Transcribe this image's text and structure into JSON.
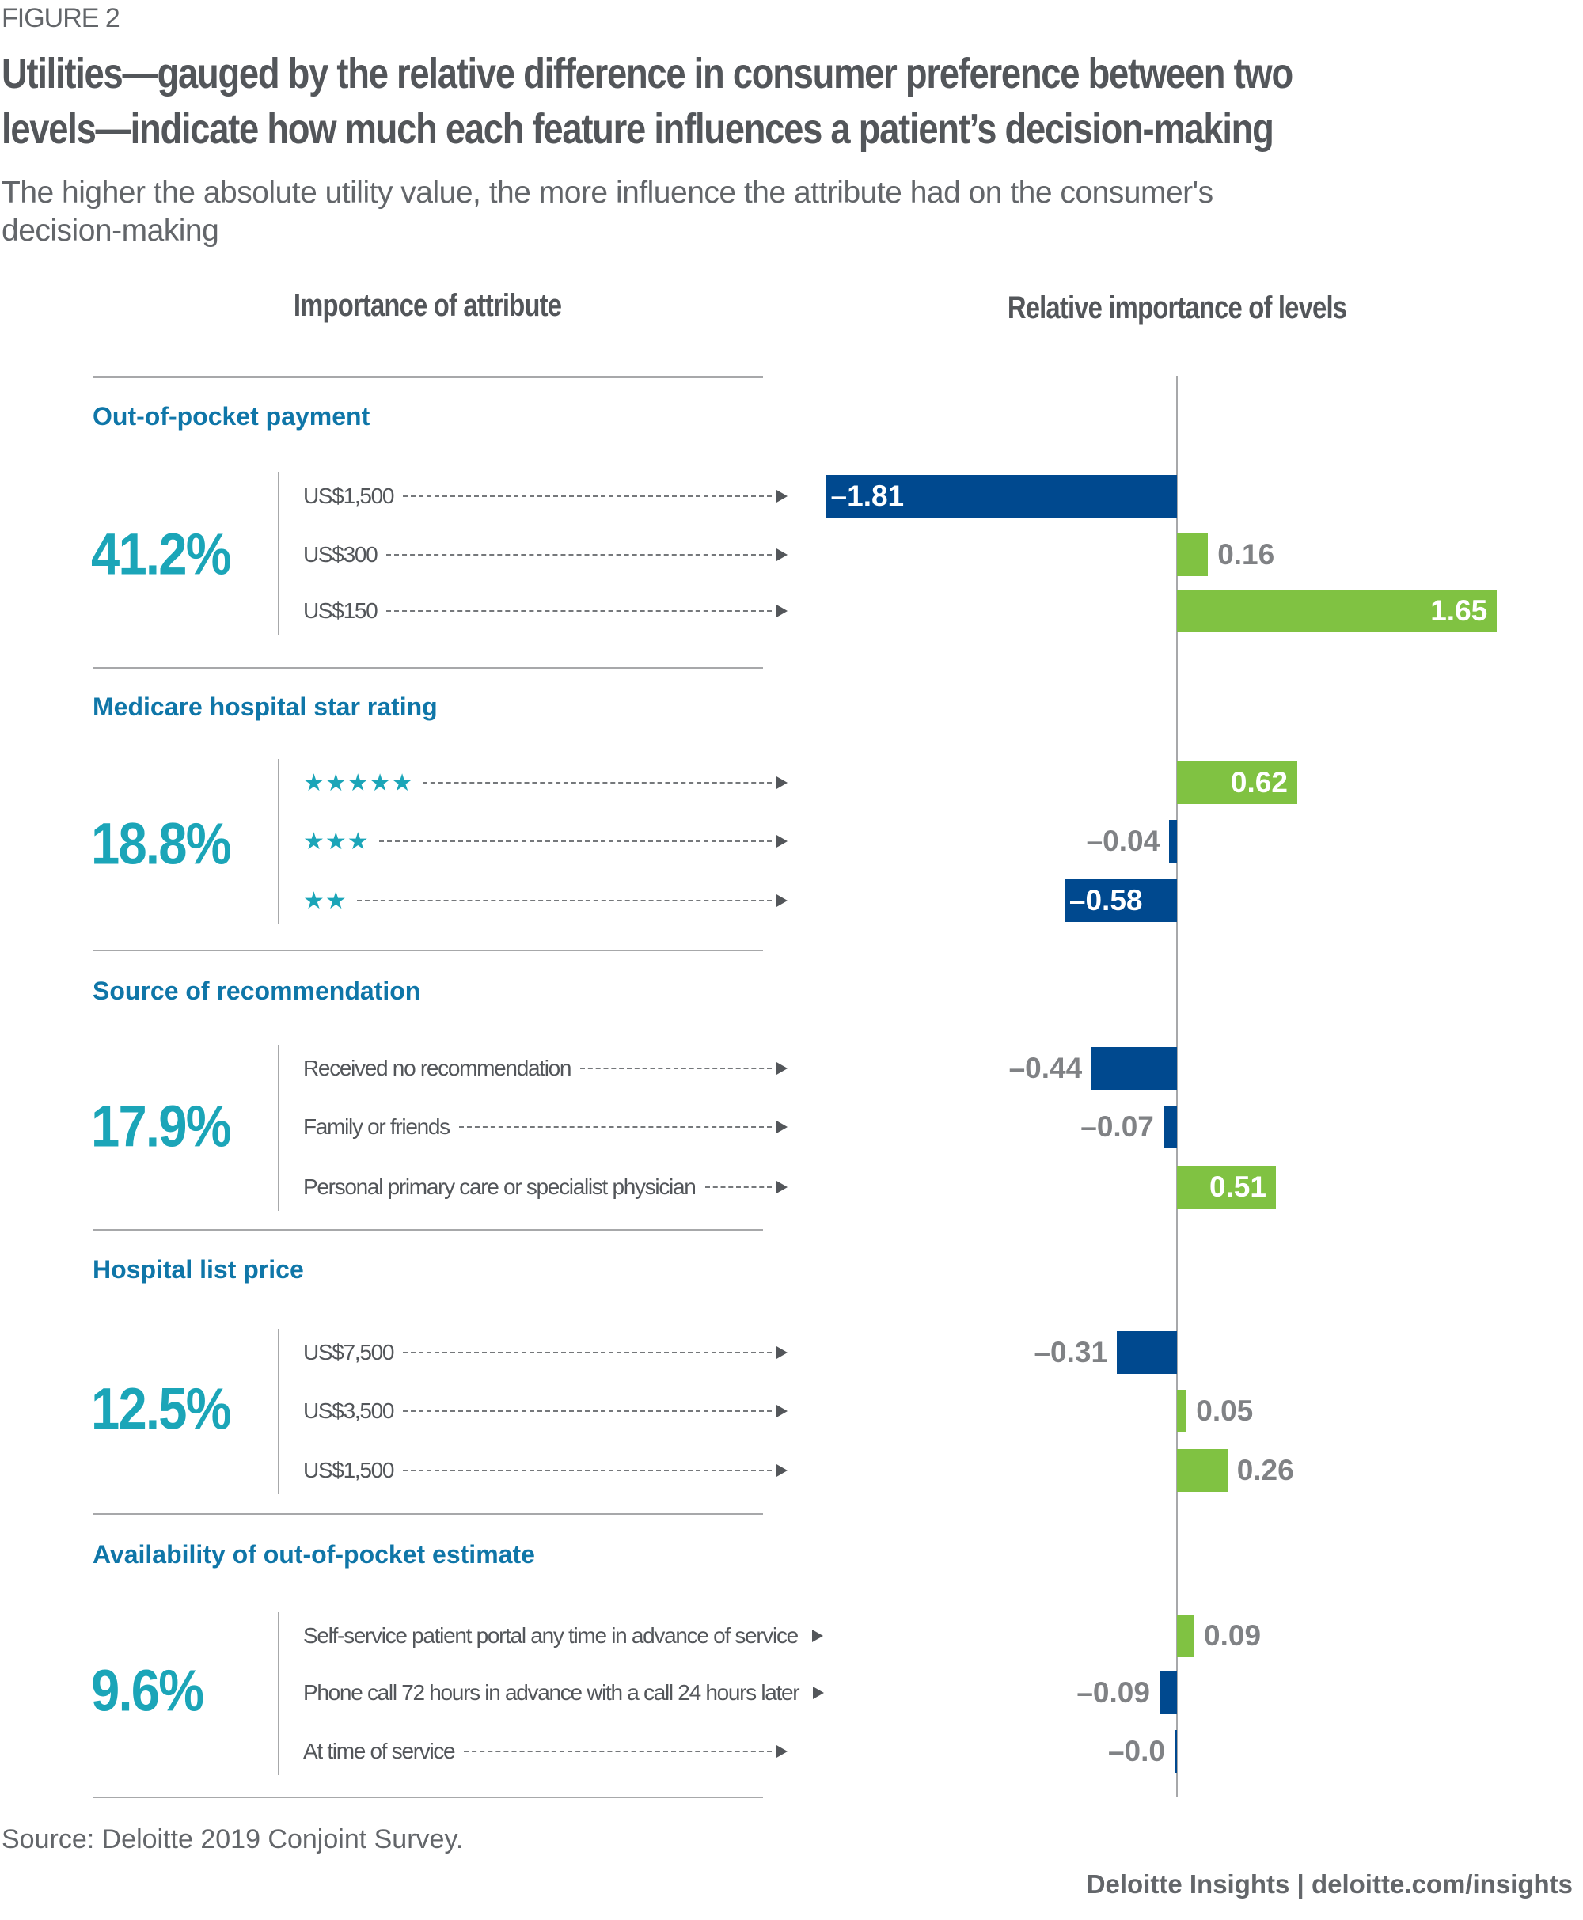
{
  "figure_label": "FIGURE 2",
  "title_lines": [
    "Utilities—gauged by the relative difference in consumer preference between two",
    "levels—indicate how much each feature influences a patient’s decision-making"
  ],
  "subtitle_lines": [
    "The higher the absolute utility value, the more influence the attribute had on the consumer's",
    "decision-making"
  ],
  "left_header": "Importance of attribute",
  "right_header": "Relative importance of levels",
  "colors": {
    "negative": "#00498f",
    "positive": "#80c242",
    "percent": "#1ba5b8",
    "section": "#0f76a8"
  },
  "chart_data": {
    "type": "bar",
    "orientation": "horizontal-diverging",
    "groups": [
      {
        "name": "Out-of-pocket payment",
        "importance": "41.2%",
        "levels": [
          {
            "label": "US$1,500",
            "value": -1.81,
            "display": "–1.81"
          },
          {
            "label": "US$300",
            "value": 0.16,
            "display": "0.16"
          },
          {
            "label": "US$150",
            "value": 1.65,
            "display": "1.65"
          }
        ]
      },
      {
        "name": "Medicare hospital star rating",
        "importance": "18.8%",
        "levels": [
          {
            "label": "★★★★★",
            "stars": 5,
            "value": 0.62,
            "display": "0.62"
          },
          {
            "label": "★★★",
            "stars": 3,
            "value": -0.04,
            "display": "–0.04"
          },
          {
            "label": "★★",
            "stars": 2,
            "value": -0.58,
            "display": "–0.58"
          }
        ]
      },
      {
        "name": "Source of recommendation",
        "importance": "17.9%",
        "levels": [
          {
            "label": "Received no recommendation",
            "value": -0.44,
            "display": "–0.44"
          },
          {
            "label": "Family or friends",
            "value": -0.07,
            "display": "–0.07"
          },
          {
            "label": "Personal primary care or specialist physician",
            "value": 0.51,
            "display": "0.51"
          }
        ]
      },
      {
        "name": "Hospital list price",
        "importance": "12.5%",
        "levels": [
          {
            "label": "US$7,500",
            "value": -0.31,
            "display": "–0.31"
          },
          {
            "label": "US$3,500",
            "value": 0.05,
            "display": "0.05"
          },
          {
            "label": "US$1,500",
            "value": 0.26,
            "display": "0.26"
          }
        ]
      },
      {
        "name": "Availability of out-of-pocket estimate",
        "importance": "9.6%",
        "levels": [
          {
            "label": "Self-service patient portal any time in advance of service",
            "value": 0.09,
            "display": "0.09"
          },
          {
            "label": "Phone call 72 hours in advance with a call 24 hours later",
            "value": -0.09,
            "display": "–0.09"
          },
          {
            "label": "At time of service",
            "value": -0.0,
            "display": "–0.0"
          }
        ]
      }
    ],
    "grid": false,
    "legend": "none"
  },
  "source": "Source: Deloitte 2019 Conjoint Survey.",
  "footer": "Deloitte Insights | deloitte.com/insights"
}
